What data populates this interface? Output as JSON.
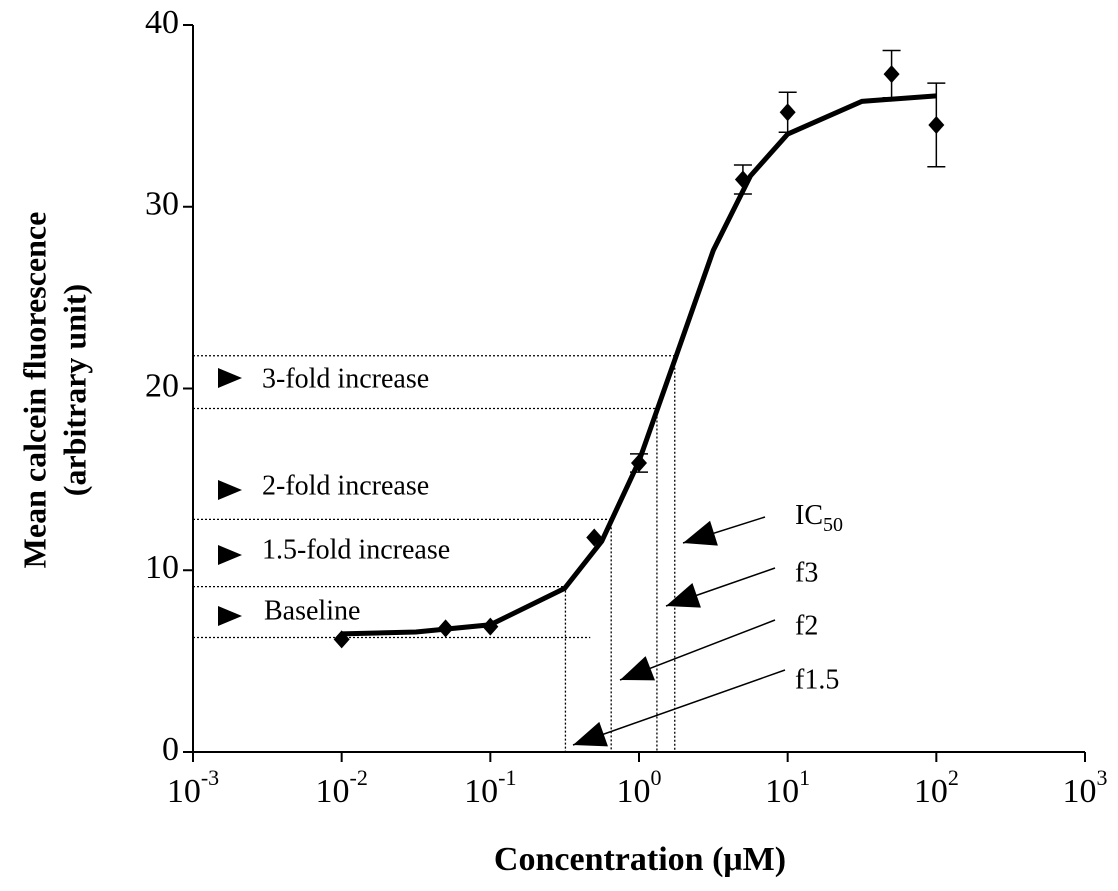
{
  "chart_data": {
    "type": "scatter",
    "x_label": "Concentration (μM)",
    "y_label": [
      "Mean calcein fluorescence",
      "(arbitrary unit)"
    ],
    "log_x": true,
    "xlim": [
      0.001,
      1000
    ],
    "ylim": [
      0,
      40
    ],
    "xticks": [
      {
        "value": 0.001,
        "label": "10",
        "exponent": "-3"
      },
      {
        "value": 0.01,
        "label": "10",
        "exponent": "-2"
      },
      {
        "value": 0.1,
        "label": "10",
        "exponent": "-1"
      },
      {
        "value": 1,
        "label": "10",
        "exponent": "0"
      },
      {
        "value": 10,
        "label": "10",
        "exponent": "1"
      },
      {
        "value": 100,
        "label": "10",
        "exponent": "2"
      },
      {
        "value": 1000,
        "label": "10",
        "exponent": "3"
      }
    ],
    "yticks": [
      0,
      10,
      20,
      30,
      40
    ],
    "color": "#000000",
    "x": [
      0.01,
      0.05,
      0.1,
      0.5,
      1,
      5,
      10,
      50,
      100
    ],
    "values": [
      6.2,
      6.8,
      6.9,
      11.8,
      15.9,
      31.5,
      35.2,
      37.3,
      34.5
    ],
    "errors": [
      null,
      null,
      null,
      null,
      0.5,
      0.8,
      1.1,
      1.3,
      2.3
    ],
    "fit": {
      "x": [
        0.01,
        0.0316,
        0.1,
        0.316,
        0.562,
        1,
        1.78,
        3.16,
        5.62,
        10,
        31.6,
        100
      ],
      "values": [
        6.5,
        6.6,
        7.0,
        9.0,
        11.6,
        16.0,
        21.8,
        27.6,
        31.7,
        34.0,
        35.8,
        36.1
      ]
    },
    "reference_lines": [
      {
        "y": 6.3,
        "x": 0.47
      },
      {
        "y": 9.1,
        "x": 0.32
      },
      {
        "y": 12.8,
        "x": 0.65
      },
      {
        "y": 18.9,
        "x": 1.32
      },
      {
        "y": 21.8,
        "x": 1.74
      }
    ],
    "left_annotations": [
      "Baseline",
      "1.5-fold increase",
      "2-fold increase",
      "3-fold increase"
    ],
    "right_annotations": [
      {
        "text": "IC",
        "subscript": "50"
      },
      {
        "text": "f3"
      },
      {
        "text": "f2"
      },
      {
        "text": "f1.5"
      }
    ]
  }
}
